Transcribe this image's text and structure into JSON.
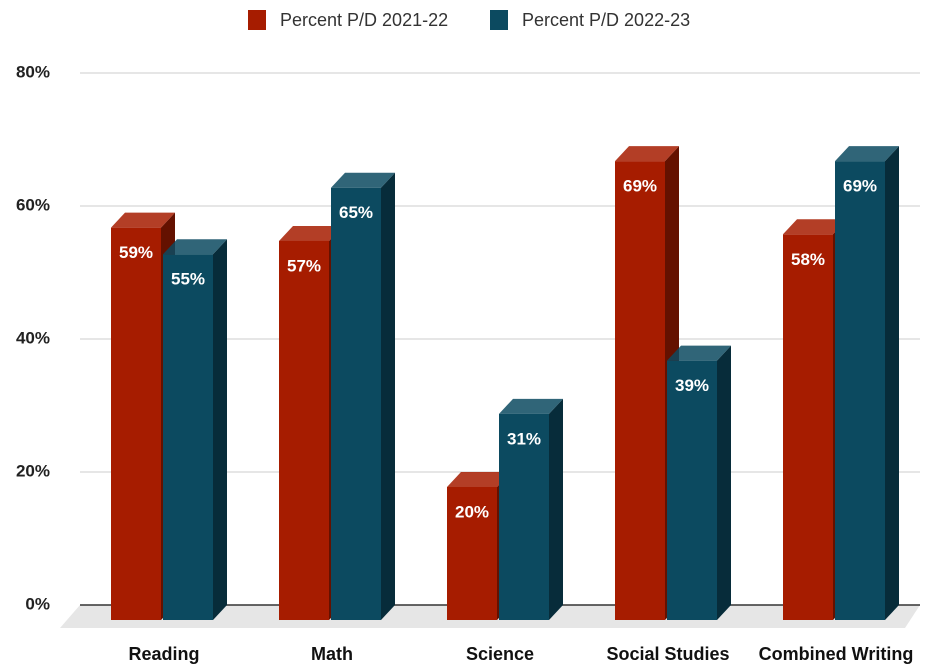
{
  "chart_data": {
    "type": "bar3d",
    "categories": [
      "Reading",
      "Math",
      "Science",
      "Social Studies",
      "Combined Writing"
    ],
    "series": [
      {
        "name": "Percent P/D 2021-22",
        "color": "#a61c00",
        "values": [
          59,
          57,
          20,
          69,
          58
        ],
        "value_labels": [
          "59%",
          "57%",
          "20%",
          "69%",
          "58%"
        ]
      },
      {
        "name": "Percent P/D 2022-23",
        "color": "#0c4a60",
        "values": [
          55,
          65,
          31,
          39,
          69
        ],
        "value_labels": [
          "55%",
          "65%",
          "31%",
          "39%",
          "69%"
        ]
      }
    ],
    "ylim": [
      0,
      80
    ],
    "yticks": [
      {
        "value": 0,
        "label": "0%"
      },
      {
        "value": 20,
        "label": "20%"
      },
      {
        "value": 40,
        "label": "40%"
      },
      {
        "value": 60,
        "label": "60%"
      },
      {
        "value": 80,
        "label": "80%"
      }
    ],
    "grid": true,
    "legend": "top"
  }
}
